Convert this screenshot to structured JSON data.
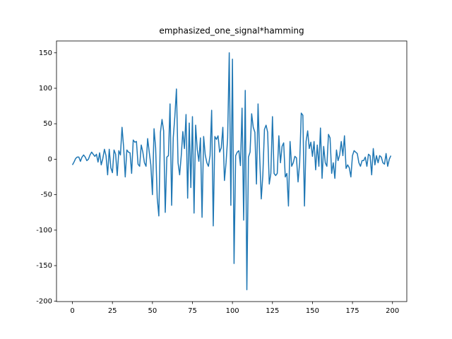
{
  "chart_data": {
    "type": "line",
    "title": "emphasized_one_signal*hamming",
    "color": "#1f77b4",
    "x": [
      0,
      1,
      2,
      3,
      4,
      5,
      6,
      7,
      8,
      9,
      10,
      11,
      12,
      13,
      14,
      15,
      16,
      17,
      18,
      19,
      20,
      21,
      22,
      23,
      24,
      25,
      26,
      27,
      28,
      29,
      30,
      31,
      32,
      33,
      34,
      35,
      36,
      37,
      38,
      39,
      40,
      41,
      42,
      43,
      44,
      45,
      46,
      47,
      48,
      49,
      50,
      51,
      52,
      53,
      54,
      55,
      56,
      57,
      58,
      59,
      60,
      61,
      62,
      63,
      64,
      65,
      66,
      67,
      68,
      69,
      70,
      71,
      72,
      73,
      74,
      75,
      76,
      77,
      78,
      79,
      80,
      81,
      82,
      83,
      84,
      85,
      86,
      87,
      88,
      89,
      90,
      91,
      92,
      93,
      94,
      95,
      96,
      97,
      98,
      99,
      100,
      101,
      102,
      103,
      104,
      105,
      106,
      107,
      108,
      109,
      110,
      111,
      112,
      113,
      114,
      115,
      116,
      117,
      118,
      119,
      120,
      121,
      122,
      123,
      124,
      125,
      126,
      127,
      128,
      129,
      130,
      131,
      132,
      133,
      134,
      135,
      136,
      137,
      138,
      139,
      140,
      141,
      142,
      143,
      144,
      145,
      146,
      147,
      148,
      149,
      150,
      151,
      152,
      153,
      154,
      155,
      156,
      157,
      158,
      159,
      160,
      161,
      162,
      163,
      164,
      165,
      166,
      167,
      168,
      169,
      170,
      171,
      172,
      173,
      174,
      175,
      176,
      177,
      178,
      179,
      180,
      181,
      182,
      183,
      184,
      185,
      186,
      187,
      188,
      189,
      190,
      191,
      192,
      193,
      194,
      195,
      196,
      197,
      198,
      199
    ],
    "values": [
      -8,
      -4,
      1,
      3,
      3,
      -3,
      3,
      6,
      3,
      -2,
      0,
      6,
      10,
      7,
      4,
      7,
      -4,
      9,
      -8,
      1,
      14,
      5,
      -22,
      14,
      -12,
      -19,
      13,
      7,
      -23,
      12,
      6,
      45,
      17,
      -25,
      13,
      10,
      9,
      -20,
      27,
      24,
      25,
      -7,
      -10,
      20,
      10,
      -5,
      -10,
      29,
      10,
      -8,
      -50,
      43,
      16,
      -55,
      -80,
      38,
      56,
      40,
      -75,
      3,
      5,
      78,
      -65,
      30,
      60,
      99,
      -5,
      -22,
      5,
      39,
      15,
      63,
      -55,
      51,
      -40,
      60,
      -76,
      48,
      14,
      -3,
      30,
      -82,
      32,
      6,
      -5,
      -10,
      5,
      69,
      -94,
      32,
      28,
      33,
      10,
      16,
      45,
      -30,
      -5,
      30,
      150,
      -65,
      141,
      -147,
      5,
      10,
      12,
      -9,
      72,
      -86,
      97,
      -184,
      3,
      10,
      64,
      45,
      38,
      -35,
      78,
      5,
      -56,
      -22,
      42,
      48,
      38,
      -35,
      -20,
      60,
      -20,
      -23,
      -20,
      33,
      -5,
      18,
      23,
      -25,
      -20,
      -66,
      25,
      -10,
      -5,
      4,
      2,
      -32,
      -5,
      65,
      62,
      -66,
      25,
      40,
      15,
      24,
      4,
      25,
      -15,
      20,
      -10,
      44,
      -27,
      18,
      -5,
      -10,
      35,
      30,
      -20,
      -5,
      -27,
      13,
      -2,
      6,
      25,
      5,
      33,
      -13,
      -8,
      -12,
      -25,
      5,
      12,
      10,
      8,
      -5,
      -10,
      -2,
      -2,
      3,
      -10,
      7,
      5,
      -22,
      15,
      -8,
      5,
      -5,
      5,
      3,
      -5,
      -7,
      8,
      -10,
      0,
      5
    ],
    "xlim": [
      -9.95,
      208.95
    ],
    "xticks": [
      0,
      25,
      50,
      75,
      100,
      125,
      150,
      175,
      200
    ],
    "ylim": [
      -200.7,
      166.7
    ],
    "yticks": [
      -200,
      -150,
      -100,
      -50,
      0,
      50,
      100,
      150
    ]
  }
}
